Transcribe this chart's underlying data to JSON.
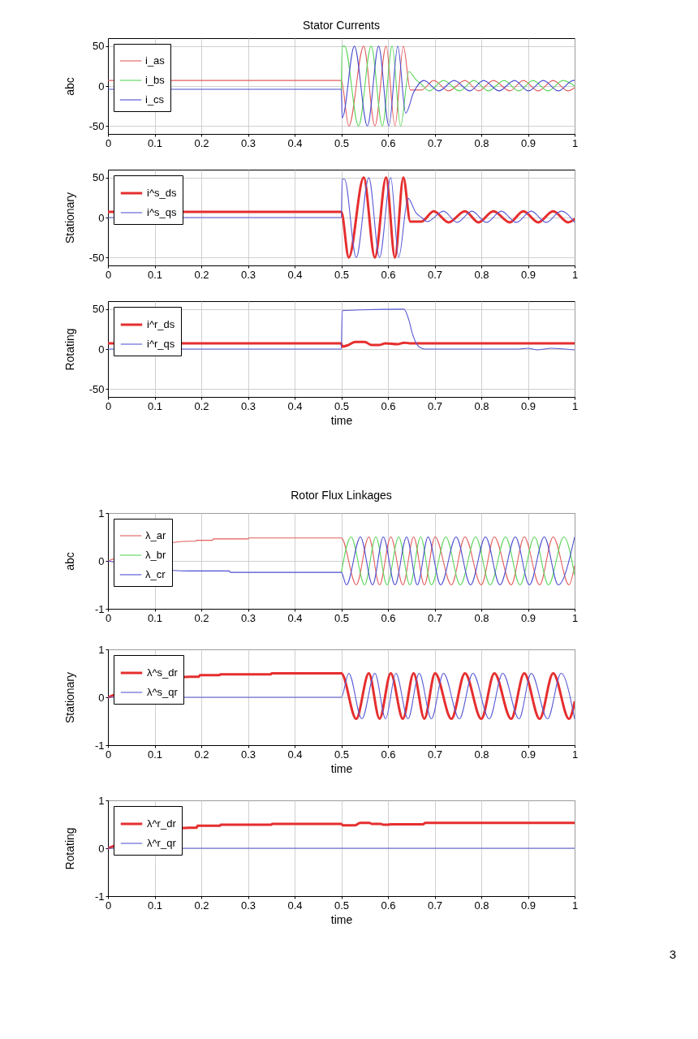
{
  "chart_data": [
    {
      "type": "line",
      "title": "Stator Currents",
      "ylabel": "abc",
      "xlim": [
        0,
        1
      ],
      "xticks": [
        0,
        0.1,
        0.2,
        0.3,
        0.4,
        0.5,
        0.6,
        0.7,
        0.8,
        0.9,
        1
      ],
      "ylim": [
        -60,
        60
      ],
      "yticks": [
        -50,
        0,
        50
      ],
      "grid": true,
      "legend": "top left",
      "series": [
        {
          "name": "i_as",
          "color": "#e35d5d",
          "x": [
            0,
            0.5,
            0.516,
            0.548,
            0.572,
            0.596,
            0.615,
            0.633,
            0.648,
            0.672,
            0.698,
            0.73,
            0.765,
            0.794,
            0.826,
            0.861,
            0.89,
            0.922,
            0.954,
            0.986,
            1
          ],
          "values": [
            7,
            7,
            -50,
            50,
            -50,
            50,
            -50,
            50,
            -5,
            -5,
            7,
            -6,
            7,
            -6,
            7,
            -6,
            7,
            -6,
            7,
            -6,
            -2
          ]
        },
        {
          "name": "i_bs",
          "color": "#5cd65c",
          "x": [
            0.5,
            0.502,
            0.507,
            0.537,
            0.564,
            0.588,
            0.609,
            0.627,
            0.645,
            0.66,
            0.672,
            0.688,
            0.719,
            0.753,
            0.784,
            0.815,
            0.849,
            0.88,
            0.911,
            0.943,
            0.975,
            1
          ],
          "values": [
            -4,
            50,
            50,
            -50,
            50,
            -50,
            50,
            -50,
            18,
            8,
            2,
            -6,
            7,
            -6,
            7,
            -6,
            7,
            -6,
            7,
            -6,
            7,
            0
          ]
        },
        {
          "name": "i_cs",
          "color": "#4d4dd1",
          "x": [
            0,
            0.5,
            0.502,
            0.528,
            0.556,
            0.58,
            0.602,
            0.621,
            0.638,
            0.655,
            0.677,
            0.709,
            0.742,
            0.775,
            0.805,
            0.838,
            0.871,
            0.901,
            0.933,
            0.965,
            0.997,
            1
          ],
          "values": [
            -4,
            -4,
            -40,
            50,
            -50,
            50,
            -50,
            50,
            -34,
            -8,
            7,
            -6,
            7,
            -6,
            7,
            -6,
            7,
            -6,
            7,
            -6,
            7,
            7
          ]
        }
      ]
    },
    {
      "type": "line",
      "ylabel": "Stationary",
      "xlim": [
        0,
        1
      ],
      "xticks": [
        0,
        0.1,
        0.2,
        0.3,
        0.4,
        0.5,
        0.6,
        0.7,
        0.8,
        0.9,
        1
      ],
      "ylim": [
        -60,
        60
      ],
      "yticks": [
        -50,
        0,
        50
      ],
      "grid": true,
      "legend": "top left",
      "series": [
        {
          "name": "i^s_ds",
          "color": "#e62e2e",
          "x": [
            0,
            0.5,
            0.516,
            0.548,
            0.572,
            0.596,
            0.615,
            0.633,
            0.648,
            0.672,
            0.698,
            0.73,
            0.765,
            0.794,
            0.826,
            0.861,
            0.89,
            0.922,
            0.954,
            0.986,
            1
          ],
          "values": [
            7,
            7,
            -50,
            50,
            -50,
            50,
            -50,
            50,
            -5,
            -5,
            8,
            -6,
            8,
            -6,
            8,
            -6,
            8,
            -6,
            8,
            -6,
            -2
          ]
        },
        {
          "name": "i^s_qs",
          "color": "#5a5ad6",
          "x": [
            0,
            0.5,
            0.502,
            0.507,
            0.532,
            0.559,
            0.582,
            0.606,
            0.623,
            0.643,
            0.66,
            0.672,
            0.684,
            0.719,
            0.748,
            0.78,
            0.811,
            0.843,
            0.875,
            0.907,
            0.939,
            0.971,
            1
          ],
          "values": [
            0,
            0,
            48,
            48,
            -50,
            50,
            -50,
            50,
            -50,
            24,
            6,
            0,
            -5,
            8,
            -6,
            8,
            -6,
            8,
            -6,
            8,
            -6,
            8,
            -6
          ]
        }
      ]
    },
    {
      "type": "line",
      "ylabel": "Rotating",
      "xlabel": "time",
      "xlim": [
        0,
        1
      ],
      "xticks": [
        0,
        0.1,
        0.2,
        0.3,
        0.4,
        0.5,
        0.6,
        0.7,
        0.8,
        0.9,
        1
      ],
      "ylim": [
        -60,
        60
      ],
      "yticks": [
        -50,
        0,
        50
      ],
      "grid": true,
      "legend": "top left",
      "series": [
        {
          "name": "i^r_ds",
          "color": "#e62e2e",
          "x": [
            0,
            0.5,
            0.502,
            0.515,
            0.53,
            0.55,
            0.565,
            0.58,
            0.595,
            0.62,
            0.635,
            0.65,
            1
          ],
          "values": [
            7,
            7,
            3,
            5,
            9,
            9,
            5,
            5,
            7,
            6,
            8,
            7,
            7
          ]
        },
        {
          "name": "i^r_qs",
          "color": "#5a5ad6",
          "x": [
            0,
            0.5,
            0.502,
            0.54,
            0.634,
            0.645,
            0.652,
            0.66,
            0.672,
            0.68,
            0.88,
            0.9,
            0.92,
            0.95,
            0.98,
            1
          ],
          "values": [
            0,
            0,
            48,
            49,
            50,
            36,
            20,
            8,
            1,
            0,
            0,
            1,
            -1,
            1,
            0,
            -1
          ]
        }
      ]
    },
    {
      "type": "line",
      "title": "Rotor Flux Linkages",
      "ylabel": "abc",
      "xlim": [
        0,
        1
      ],
      "xticks": [
        0,
        0.1,
        0.2,
        0.3,
        0.4,
        0.5,
        0.6,
        0.7,
        0.8,
        0.9,
        1
      ],
      "ylim": [
        -1,
        1
      ],
      "yticks": [
        -1,
        0,
        1
      ],
      "grid": true,
      "legend": "top left",
      "series": [
        {
          "name": "λ_ar",
          "color": "#e35d5d",
          "x": [
            0,
            0.175,
            0.188,
            0.19,
            0.224,
            0.226,
            0.3,
            0.302,
            0.5,
            0.532,
            0.559,
            0.582,
            0.606,
            0.632,
            0.655,
            0.678,
            0.701,
            0.736,
            0.765,
            0.8,
            0.828,
            0.864,
            0.892,
            0.925,
            0.954,
            0.988,
            1
          ],
          "values": [
            0,
            0.41,
            0.41,
            0.43,
            0.43,
            0.46,
            0.46,
            0.48,
            0.48,
            -0.5,
            0.5,
            -0.5,
            0.5,
            -0.5,
            0.5,
            -0.5,
            0.5,
            -0.5,
            0.5,
            -0.5,
            0.5,
            -0.5,
            0.5,
            -0.5,
            0.5,
            -0.5,
            -0.1
          ]
        },
        {
          "name": "λ_br",
          "color": "#5cd65c",
          "x": [
            0.5,
            0.521,
            0.55,
            0.574,
            0.598,
            0.623,
            0.647,
            0.67,
            0.693,
            0.724,
            0.755,
            0.788,
            0.819,
            0.852,
            0.883,
            0.914,
            0.944,
            0.977,
            1
          ],
          "values": [
            -0.24,
            0.5,
            -0.5,
            0.5,
            -0.5,
            0.5,
            -0.5,
            0.5,
            -0.5,
            0.5,
            -0.5,
            0.5,
            -0.5,
            0.5,
            -0.5,
            0.5,
            -0.5,
            0.5,
            -0.3
          ]
        },
        {
          "name": "λ_cr",
          "color": "#4d4dd1",
          "x": [
            0,
            0.175,
            0.26,
            0.262,
            0.5,
            0.511,
            0.541,
            0.567,
            0.59,
            0.615,
            0.64,
            0.663,
            0.686,
            0.713,
            0.746,
            0.777,
            0.809,
            0.84,
            0.873,
            0.903,
            0.935,
            0.965,
            1
          ],
          "values": [
            0,
            -0.21,
            -0.21,
            -0.24,
            -0.24,
            -0.5,
            0.5,
            -0.5,
            0.5,
            -0.5,
            0.5,
            -0.5,
            0.5,
            -0.5,
            0.5,
            -0.5,
            0.5,
            -0.5,
            0.5,
            -0.5,
            0.5,
            -0.5,
            0.5
          ]
        }
      ]
    },
    {
      "type": "line",
      "ylabel": "Stationary",
      "xlabel": "time",
      "xlim": [
        0,
        1
      ],
      "xticks": [
        0,
        0.1,
        0.2,
        0.3,
        0.4,
        0.5,
        0.6,
        0.7,
        0.8,
        0.9,
        1
      ],
      "ylim": [
        -1,
        1
      ],
      "yticks": [
        -1,
        0,
        1
      ],
      "grid": true,
      "legend": "top left",
      "series": [
        {
          "name": "λ^s_dr",
          "color": "#e62e2e",
          "x": [
            0,
            0.175,
            0.195,
            0.197,
            0.239,
            0.241,
            0.349,
            0.351,
            0.5,
            0.532,
            0.559,
            0.582,
            0.606,
            0.632,
            0.655,
            0.678,
            0.701,
            0.736,
            0.765,
            0.8,
            0.828,
            0.864,
            0.892,
            0.925,
            0.954,
            0.988,
            1
          ],
          "values": [
            0,
            0.43,
            0.43,
            0.46,
            0.46,
            0.48,
            0.48,
            0.5,
            0.5,
            -0.45,
            0.5,
            -0.45,
            0.5,
            -0.45,
            0.5,
            -0.45,
            0.5,
            -0.45,
            0.5,
            -0.45,
            0.5,
            -0.45,
            0.5,
            -0.45,
            0.5,
            -0.45,
            -0.1
          ]
        },
        {
          "name": "λ^s_qr",
          "color": "#5a5ad6",
          "x": [
            0,
            0.5,
            0.516,
            0.544,
            0.572,
            0.595,
            0.617,
            0.643,
            0.667,
            0.693,
            0.719,
            0.753,
            0.782,
            0.817,
            0.846,
            0.881,
            0.907,
            0.942,
            0.971,
            1
          ],
          "values": [
            0,
            0,
            0.5,
            -0.45,
            0.5,
            -0.45,
            0.5,
            -0.45,
            0.5,
            -0.45,
            0.5,
            -0.45,
            0.5,
            -0.45,
            0.5,
            -0.45,
            0.5,
            -0.45,
            0.5,
            -0.45
          ]
        }
      ]
    },
    {
      "type": "line",
      "ylabel": "Rotating",
      "xlabel": "time",
      "xlim": [
        0,
        1
      ],
      "xticks": [
        0,
        0.1,
        0.2,
        0.3,
        0.4,
        0.5,
        0.6,
        0.7,
        0.8,
        0.9,
        1
      ],
      "ylim": [
        -1,
        1
      ],
      "yticks": [
        -1,
        0,
        1
      ],
      "grid": true,
      "legend": "top left",
      "annotations": [
        "3"
      ],
      "series": [
        {
          "name": "λ^r_dr",
          "color": "#e62e2e",
          "x": [
            0,
            0.175,
            0.19,
            0.192,
            0.24,
            0.242,
            0.35,
            0.352,
            0.5,
            0.503,
            0.53,
            0.54,
            0.56,
            0.565,
            0.585,
            0.59,
            0.6,
            0.605,
            0.675,
            0.68,
            1
          ],
          "values": [
            0,
            0.43,
            0.43,
            0.47,
            0.47,
            0.49,
            0.49,
            0.51,
            0.51,
            0.48,
            0.48,
            0.53,
            0.53,
            0.51,
            0.51,
            0.49,
            0.49,
            0.5,
            0.5,
            0.53,
            0.53
          ]
        },
        {
          "name": "λ^r_qr",
          "color": "#5a5ad6",
          "x": [
            0,
            1
          ],
          "values": [
            0,
            0
          ]
        }
      ]
    }
  ]
}
